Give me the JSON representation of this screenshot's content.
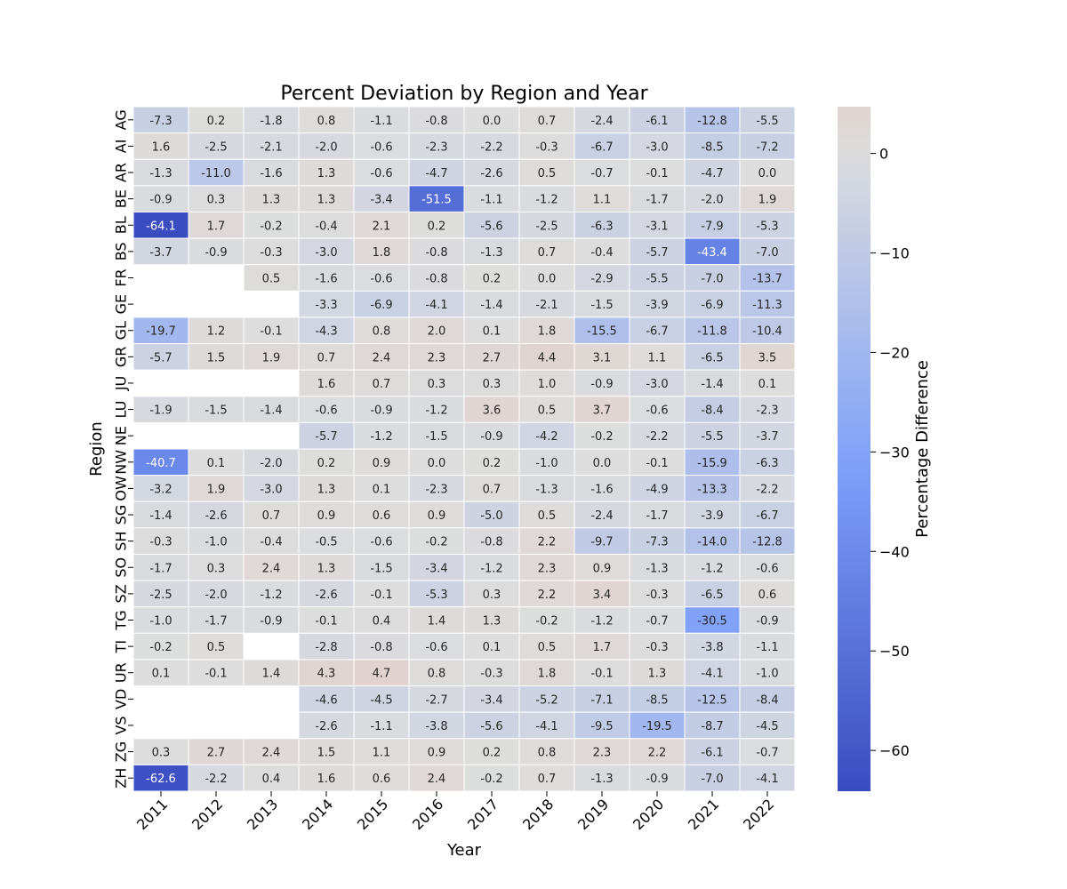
{
  "chart_data": {
    "type": "heatmap",
    "title": "Percent Deviation by Region and Year",
    "xlabel": "Year",
    "ylabel": "Region",
    "colorbar_label": "Percentage Difference",
    "colorbar_ticks": [
      0,
      -10,
      -20,
      -30,
      -40,
      -50,
      -60
    ],
    "colorbar_range": [
      -64.1,
      4.7
    ],
    "colormap": "coolwarm (centered at 0)",
    "x": [
      "2011",
      "2012",
      "2013",
      "2014",
      "2015",
      "2016",
      "2017",
      "2018",
      "2019",
      "2020",
      "2021",
      "2022"
    ],
    "y": [
      "AG",
      "AI",
      "AR",
      "BE",
      "BL",
      "BS",
      "FR",
      "GE",
      "GL",
      "GR",
      "JU",
      "LU",
      "NE",
      "NW",
      "OW",
      "SG",
      "SH",
      "SO",
      "SZ",
      "TG",
      "TI",
      "UR",
      "VD",
      "VS",
      "ZG",
      "ZH"
    ],
    "values": [
      [
        -7.3,
        0.2,
        -1.8,
        0.8,
        -1.1,
        -0.8,
        0.0,
        0.7,
        -2.4,
        -6.1,
        -12.8,
        -5.5
      ],
      [
        1.6,
        -2.5,
        -2.1,
        -2.0,
        -0.6,
        -2.3,
        -2.2,
        -0.3,
        -6.7,
        -3.0,
        -8.5,
        -7.2
      ],
      [
        -1.3,
        -11.0,
        -1.6,
        1.3,
        -0.6,
        -4.7,
        -2.6,
        0.5,
        -0.7,
        -0.1,
        -4.7,
        0.0
      ],
      [
        -0.9,
        0.3,
        1.3,
        1.3,
        -3.4,
        -51.5,
        -1.1,
        -1.2,
        1.1,
        -1.7,
        -2.0,
        1.9
      ],
      [
        -64.1,
        1.7,
        -0.2,
        -0.4,
        2.1,
        0.2,
        -5.6,
        -2.5,
        -6.3,
        -3.1,
        -7.9,
        -5.3
      ],
      [
        -3.7,
        -0.9,
        -0.3,
        -3.0,
        1.8,
        -0.8,
        -1.3,
        0.7,
        -0.4,
        -5.7,
        -43.4,
        -7.0
      ],
      [
        null,
        null,
        0.5,
        -1.6,
        -0.6,
        -0.8,
        0.2,
        0.0,
        -2.9,
        -5.5,
        -7.0,
        -13.7
      ],
      [
        null,
        null,
        null,
        -3.3,
        -6.9,
        -4.1,
        -1.4,
        -2.1,
        -1.5,
        -3.9,
        -6.9,
        -11.3
      ],
      [
        -19.7,
        1.2,
        -0.1,
        -4.3,
        0.8,
        2.0,
        0.1,
        1.8,
        -15.5,
        -6.7,
        -11.8,
        -10.4
      ],
      [
        -5.7,
        1.5,
        1.9,
        0.7,
        2.4,
        2.3,
        2.7,
        4.4,
        3.1,
        1.1,
        -6.5,
        3.5
      ],
      [
        null,
        null,
        null,
        1.6,
        0.7,
        0.3,
        0.3,
        1.0,
        -0.9,
        -3.0,
        -1.4,
        0.1
      ],
      [
        -1.9,
        -1.5,
        -1.4,
        -0.6,
        -0.9,
        -1.2,
        3.6,
        0.5,
        3.7,
        -0.6,
        -8.4,
        -2.3
      ],
      [
        null,
        null,
        null,
        -5.7,
        -1.2,
        -1.5,
        -0.9,
        -4.2,
        -0.2,
        -2.2,
        -5.5,
        -3.7
      ],
      [
        -40.7,
        0.1,
        -2.0,
        0.2,
        0.9,
        -0.0,
        0.2,
        -1.0,
        -0.0,
        -0.1,
        -15.9,
        -6.3
      ],
      [
        -3.2,
        1.9,
        -3.0,
        1.3,
        0.1,
        -2.3,
        0.7,
        -1.3,
        -1.6,
        -4.9,
        -13.3,
        -2.2
      ],
      [
        -1.4,
        -2.6,
        0.7,
        0.9,
        0.6,
        0.9,
        -5.0,
        0.5,
        -2.4,
        -1.7,
        -3.9,
        -6.7
      ],
      [
        -0.3,
        -1.0,
        -0.4,
        -0.5,
        -0.6,
        -0.2,
        -0.8,
        2.2,
        -9.7,
        -7.3,
        -14.0,
        -12.8
      ],
      [
        -1.7,
        0.3,
        2.4,
        1.3,
        -1.5,
        -3.4,
        -1.2,
        2.3,
        0.9,
        -1.3,
        -1.2,
        -0.6
      ],
      [
        -2.5,
        -2.0,
        -1.2,
        -2.6,
        -0.1,
        -5.3,
        0.3,
        2.2,
        3.4,
        -0.3,
        -6.5,
        0.6
      ],
      [
        -1.0,
        -1.7,
        -0.9,
        -0.1,
        0.4,
        1.4,
        1.3,
        -0.2,
        -1.2,
        -0.7,
        -30.5,
        -0.9
      ],
      [
        -0.2,
        0.5,
        null,
        -2.8,
        -0.8,
        -0.6,
        0.1,
        0.5,
        1.7,
        -0.3,
        -3.8,
        -1.1
      ],
      [
        0.1,
        -0.1,
        1.4,
        4.3,
        4.7,
        0.8,
        -0.3,
        1.8,
        -0.1,
        1.3,
        -4.1,
        -1.0
      ],
      [
        null,
        null,
        null,
        -4.6,
        -4.5,
        -2.7,
        -3.4,
        -5.2,
        -7.1,
        -8.5,
        -12.5,
        -8.4
      ],
      [
        null,
        null,
        null,
        -2.6,
        -1.1,
        -3.8,
        -5.6,
        -4.1,
        -9.5,
        -19.5,
        -8.7,
        -4.5
      ],
      [
        0.3,
        2.7,
        2.4,
        1.5,
        1.1,
        0.9,
        0.2,
        0.8,
        2.3,
        2.2,
        -6.1,
        -0.7
      ],
      [
        -62.6,
        -2.2,
        0.4,
        1.6,
        0.6,
        2.4,
        -0.2,
        0.7,
        -1.3,
        -0.9,
        -7.0,
        -4.1
      ]
    ]
  }
}
